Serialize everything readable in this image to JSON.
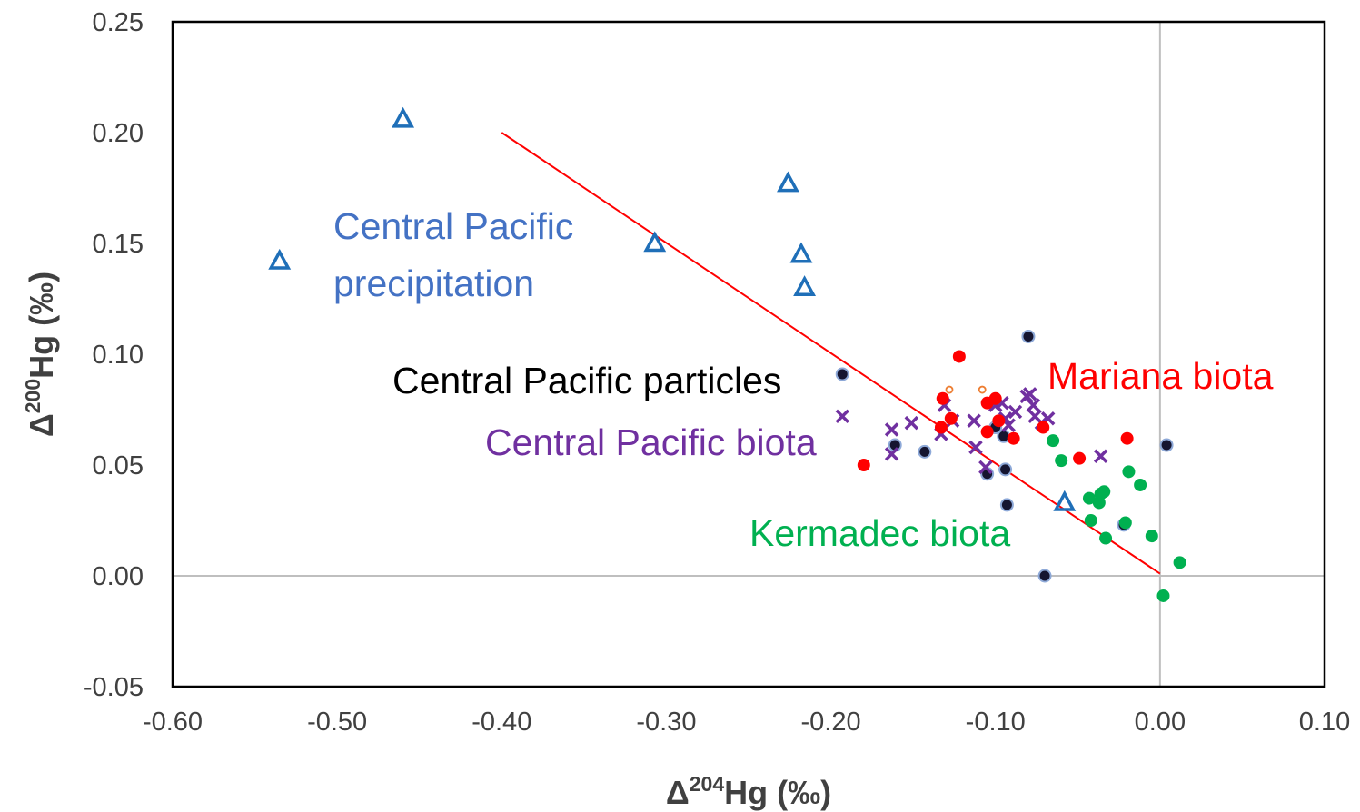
{
  "chart_data": {
    "type": "scatter",
    "title": "",
    "xlabel": {
      "prefix": "Δ",
      "sup": "204",
      "suffix": "Hg (‰)"
    },
    "ylabel": {
      "prefix": "Δ",
      "sup": "200",
      "suffix": "Hg (‰)"
    },
    "xlim": [
      -0.6,
      0.1
    ],
    "ylim": [
      -0.05,
      0.25
    ],
    "x_ticks": [
      "-0.60",
      "-0.50",
      "-0.40",
      "-0.30",
      "-0.20",
      "-0.10",
      "0.00",
      "0.10"
    ],
    "y_ticks": [
      "-0.05",
      "0.00",
      "0.05",
      "0.10",
      "0.15",
      "0.20",
      "0.25"
    ],
    "zero_lines": true,
    "grid": false,
    "legend": "none",
    "colors": {
      "precipitation": "#1F6FB8",
      "particles_fill": "#151530",
      "particles_ring": "#8EA9D8",
      "central_biota": "#7030A0",
      "mariana": "#FF0000",
      "mariana_open": "#ED7D31",
      "kermadec": "#00B050",
      "kermadec_label": "#00B050",
      "precip_label": "#4472C4",
      "fit_line": "#FF0000",
      "zero_line": "#BFBFBF"
    },
    "annotations": [
      {
        "text": "Central Pacific",
        "group": "precipitation",
        "line": 1
      },
      {
        "text": "precipitation",
        "group": "precipitation",
        "line": 2
      },
      {
        "text": "Central Pacific particles",
        "group": "particles"
      },
      {
        "text": "Central Pacific biota",
        "group": "central_biota"
      },
      {
        "text": "Mariana biota",
        "group": "mariana"
      },
      {
        "text": "Kermadec biota",
        "group": "kermadec"
      }
    ],
    "fit_line": {
      "x": [
        -0.4,
        0.0
      ],
      "y": [
        0.2,
        0.001
      ]
    },
    "series": [
      {
        "key": "precipitation",
        "marker": "triangle-open",
        "points": [
          [
            -0.535,
            0.142
          ],
          [
            -0.46,
            0.206
          ],
          [
            -0.307,
            0.15
          ],
          [
            -0.226,
            0.177
          ],
          [
            -0.218,
            0.145
          ],
          [
            -0.216,
            0.13
          ],
          [
            -0.058,
            0.033
          ]
        ]
      },
      {
        "key": "particles",
        "marker": "circle-filled-ring",
        "points": [
          [
            -0.193,
            0.091
          ],
          [
            -0.161,
            0.059
          ],
          [
            -0.143,
            0.056
          ],
          [
            -0.105,
            0.046
          ],
          [
            -0.1,
            0.067
          ],
          [
            -0.095,
            0.063
          ],
          [
            -0.094,
            0.048
          ],
          [
            -0.093,
            0.032
          ],
          [
            -0.08,
            0.108
          ],
          [
            -0.07,
            0.0
          ],
          [
            -0.022,
            0.023
          ],
          [
            0.004,
            0.059
          ]
        ]
      },
      {
        "key": "central_biota",
        "marker": "x",
        "points": [
          [
            -0.193,
            0.072
          ],
          [
            -0.163,
            0.066
          ],
          [
            -0.163,
            0.055
          ],
          [
            -0.151,
            0.069
          ],
          [
            -0.133,
            0.064
          ],
          [
            -0.131,
            0.077
          ],
          [
            -0.126,
            0.07
          ],
          [
            -0.113,
            0.07
          ],
          [
            -0.112,
            0.058
          ],
          [
            -0.106,
            0.049
          ],
          [
            -0.1,
            0.077
          ],
          [
            -0.096,
            0.078
          ],
          [
            -0.094,
            0.071
          ],
          [
            -0.092,
            0.068
          ],
          [
            -0.088,
            0.074
          ],
          [
            -0.081,
            0.081
          ],
          [
            -0.079,
            0.082
          ],
          [
            -0.077,
            0.077
          ],
          [
            -0.076,
            0.072
          ],
          [
            -0.072,
            0.069
          ],
          [
            -0.068,
            0.071
          ],
          [
            -0.036,
            0.054
          ]
        ]
      },
      {
        "key": "mariana",
        "marker": "circle-filled",
        "points": [
          [
            -0.18,
            0.05
          ],
          [
            -0.133,
            0.067
          ],
          [
            -0.132,
            0.08
          ],
          [
            -0.127,
            0.071
          ],
          [
            -0.122,
            0.099
          ],
          [
            -0.105,
            0.065
          ],
          [
            -0.105,
            0.078
          ],
          [
            -0.1,
            0.08
          ],
          [
            -0.098,
            0.07
          ],
          [
            -0.089,
            0.062
          ],
          [
            -0.071,
            0.067
          ],
          [
            -0.049,
            0.053
          ],
          [
            -0.02,
            0.062
          ]
        ]
      },
      {
        "key": "mariana_open",
        "marker": "circle-open-small",
        "points": [
          [
            -0.128,
            0.084
          ],
          [
            -0.108,
            0.084
          ]
        ]
      },
      {
        "key": "kermadec",
        "marker": "circle-filled",
        "points": [
          [
            -0.065,
            0.061
          ],
          [
            -0.06,
            0.052
          ],
          [
            -0.043,
            0.035
          ],
          [
            -0.042,
            0.025
          ],
          [
            -0.037,
            0.033
          ],
          [
            -0.036,
            0.037
          ],
          [
            -0.034,
            0.038
          ],
          [
            -0.033,
            0.017
          ],
          [
            -0.021,
            0.024
          ],
          [
            -0.019,
            0.047
          ],
          [
            -0.012,
            0.041
          ],
          [
            -0.005,
            0.018
          ],
          [
            0.002,
            -0.009
          ],
          [
            0.012,
            0.006
          ]
        ]
      }
    ]
  }
}
